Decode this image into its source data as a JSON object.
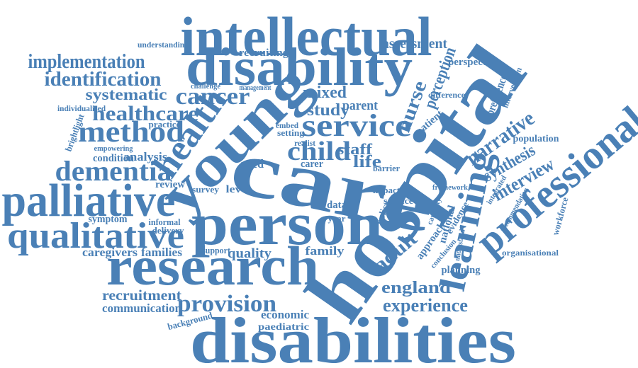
{
  "words": [
    "intellectual",
    "disability",
    "disabilities",
    "hospital",
    "care",
    "person",
    "research",
    "young",
    "palliative",
    "qualitative",
    "professional",
    "learning",
    "health",
    "service",
    "dementia",
    "method",
    "cancer",
    "healthcare",
    "implementation",
    "identification",
    "systematic",
    "provision",
    "child",
    "narrative",
    "interview",
    "synthesis",
    "experience",
    "england",
    "adult",
    "recruitment",
    "communication",
    "caregivers",
    "families",
    "quality",
    "family",
    "economic",
    "paediatric",
    "mixed",
    "study",
    "parent",
    "nurse",
    "perception",
    "staff",
    "life",
    "assessment",
    "recruiting",
    "understanding",
    "perspective",
    "difference",
    "patient",
    "preference",
    "intervention",
    "population",
    "workforce",
    "organisational",
    "planning",
    "analysis",
    "condition",
    "empowering",
    "practice",
    "review",
    "survey",
    "symptom",
    "informal",
    "delivery",
    "support",
    "level",
    "need",
    "carer",
    "data",
    "year",
    "impact",
    "science",
    "policy",
    "framework",
    "national",
    "approach",
    "evidence",
    "management",
    "challenge",
    "individualised",
    "brightlight",
    "background",
    "setting",
    "embed",
    "realist",
    "barrier",
    "integrated",
    "recommendation",
    "capacity",
    "conclusion",
    "understand"
  ]
}
